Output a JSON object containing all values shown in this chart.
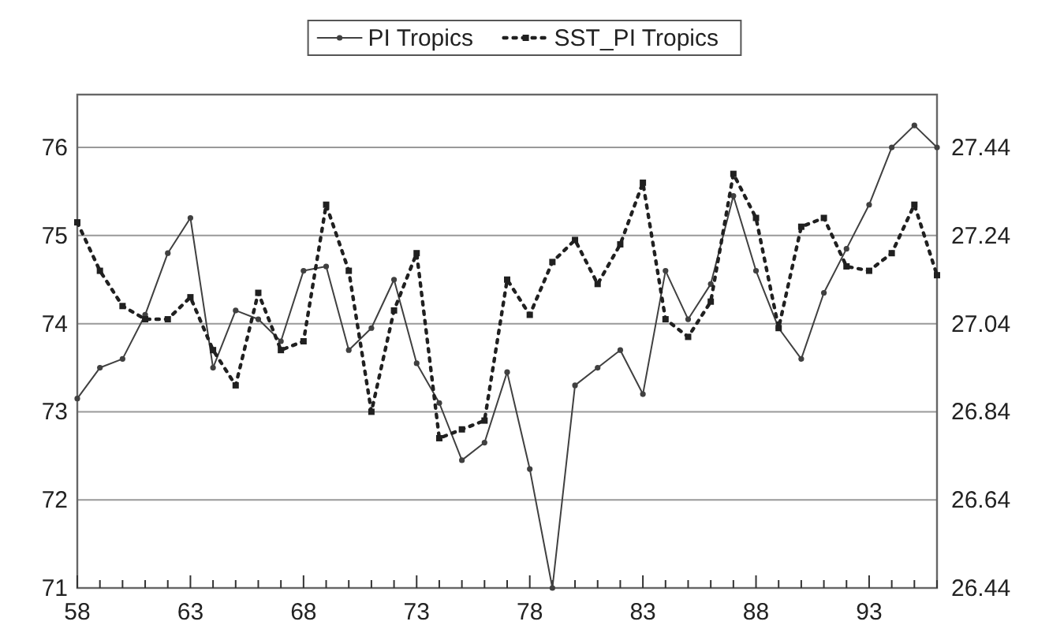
{
  "chart_data": {
    "type": "line",
    "x": [
      58,
      59,
      60,
      61,
      62,
      63,
      64,
      65,
      66,
      67,
      68,
      69,
      70,
      71,
      72,
      73,
      74,
      75,
      76,
      77,
      78,
      79,
      80,
      81,
      82,
      83,
      84,
      85,
      86,
      87,
      88,
      89,
      90,
      91,
      92,
      93,
      94,
      95,
      96
    ],
    "series": [
      {
        "name": "PI Tropics",
        "color": "#404040",
        "line_style": "solid",
        "marker": "circle",
        "values": [
          73.15,
          73.5,
          73.6,
          74.1,
          74.8,
          75.2,
          73.5,
          74.15,
          74.05,
          73.8,
          74.6,
          74.65,
          73.7,
          73.95,
          74.5,
          73.55,
          73.1,
          72.45,
          72.65,
          73.45,
          72.35,
          71,
          73.3,
          73.5,
          73.7,
          73.2,
          74.6,
          74.05,
          74.45,
          75.45,
          74.6,
          73.95,
          73.6,
          74.35,
          74.85,
          75.35,
          76.0,
          76.25,
          76.0
        ]
      },
      {
        "name": "SST_PI Tropics",
        "color": "#202020",
        "line_style": "dotted",
        "marker": "square",
        "axis": "y2",
        "values": [
          27.27,
          27.16,
          27.08,
          27.05,
          27.05,
          27.1,
          26.98,
          26.9,
          27.11,
          26.98,
          27.0,
          27.31,
          27.16,
          26.84,
          27.07,
          27.2,
          26.78,
          26.8,
          26.82,
          27.14,
          27.06,
          27.18,
          27.23,
          27.13,
          27.22,
          27.36,
          27.05,
          27.01,
          27.09,
          27.38,
          27.28,
          27.03,
          27.26,
          27.28,
          27.17,
          27.16,
          27.2,
          27.31,
          27.15
        ]
      }
    ],
    "xlim": [
      58,
      96
    ],
    "xticks": [
      58,
      {
        "value": 59,
        "label": null
      },
      {
        "value": 60,
        "label": null
      },
      {
        "value": 61,
        "label": null
      },
      {
        "value": 62,
        "label": null
      },
      63,
      {
        "value": 64,
        "label": null
      },
      {
        "value": 65,
        "label": null
      },
      {
        "value": 66,
        "label": null
      },
      {
        "value": 67,
        "label": null
      },
      68,
      {
        "value": 69,
        "label": null
      },
      {
        "value": 70,
        "label": null
      },
      {
        "value": 71,
        "label": null
      },
      {
        "value": 72,
        "label": null
      },
      73,
      {
        "value": 74,
        "label": null
      },
      {
        "value": 75,
        "label": null
      },
      {
        "value": 76,
        "label": null
      },
      {
        "value": 77,
        "label": null
      },
      78,
      {
        "value": 79,
        "label": null
      },
      {
        "value": 80,
        "label": null
      },
      {
        "value": 81,
        "label": null
      },
      {
        "value": 82,
        "label": null
      },
      83,
      {
        "value": 84,
        "label": null
      },
      {
        "value": 85,
        "label": null
      },
      {
        "value": 86,
        "label": null
      },
      {
        "value": 87,
        "label": null
      },
      88,
      {
        "value": 89,
        "label": null
      },
      {
        "value": 90,
        "label": null
      },
      {
        "value": 91,
        "label": null
      },
      {
        "value": 92,
        "label": null
      },
      93,
      {
        "value": 94,
        "label": null
      },
      {
        "value": 95,
        "label": null
      },
      {
        "value": 96,
        "label": null
      }
    ],
    "ylim": [
      71,
      76.6
    ],
    "yticks": [
      71,
      72,
      73,
      74,
      75,
      76
    ],
    "y2lim": [
      26.44,
      27.56
    ],
    "y2ticks": [
      26.44,
      26.64,
      26.84,
      27.04,
      27.24,
      27.44
    ],
    "grid": "y",
    "legend": "top"
  }
}
